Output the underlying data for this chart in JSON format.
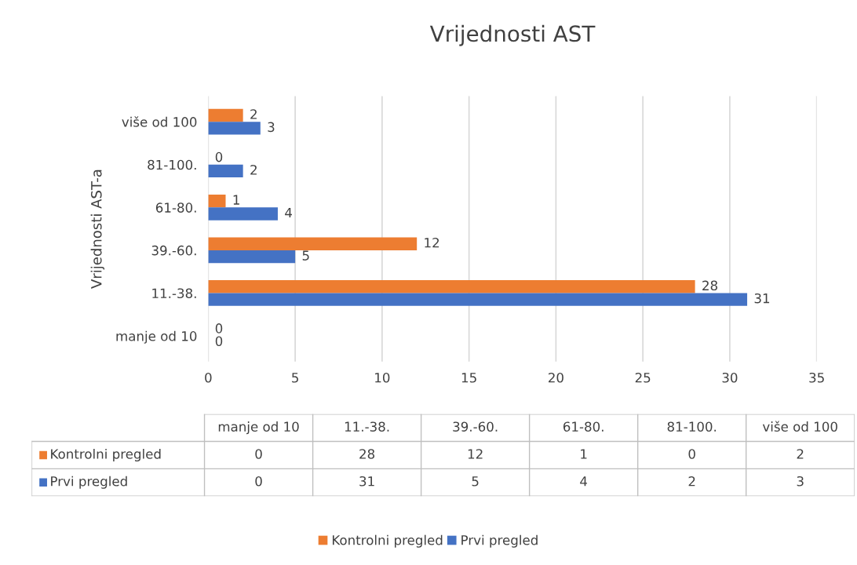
{
  "chart_data": [
    {
      "type": "bar",
      "orientation": "horizontal",
      "title": "Vrijednosti AST",
      "ylabel": "Vrijednosti AST-a",
      "categories": [
        "više od 100",
        "81-100.",
        "61-80.",
        "39.-60.",
        "11.-38.",
        "manje od 10"
      ],
      "series": [
        {
          "name": "Kontrolni pregled",
          "color": "#ed7d31",
          "values": [
            2,
            0,
            1,
            12,
            28,
            0
          ]
        },
        {
          "name": "Prvi pregled",
          "color": "#4472c4",
          "values": [
            3,
            2,
            4,
            5,
            31,
            0
          ]
        }
      ],
      "xlim": [
        0,
        35
      ],
      "xticks": [
        0,
        5,
        10,
        15,
        20,
        25,
        30,
        35
      ],
      "grid": "x",
      "legend": "bottom",
      "data_labels": true
    },
    {
      "type": "other",
      "data_labels": true,
      "categories": [
        "manje od 10",
        "11.-38.",
        "39.-60.",
        "61-80.",
        "81-100.",
        "više od 100"
      ],
      "series": [
        {
          "name": "Kontrolni pregled",
          "color": "#ed7d31",
          "values": [
            0,
            28,
            12,
            1,
            0,
            2
          ]
        },
        {
          "name": "Prvi pregled",
          "color": "#4472c4",
          "values": [
            0,
            31,
            5,
            4,
            2,
            3
          ]
        }
      ]
    }
  ]
}
